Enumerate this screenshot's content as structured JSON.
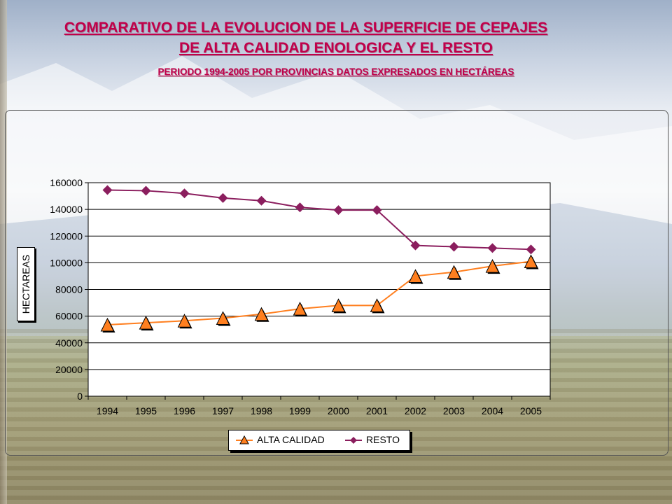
{
  "title_line1": "COMPARATIVO DE LA EVOLUCION DE LA SUPERFICIE DE CEPAJES",
  "title_line2": "DE ALTA CALIDAD ENOLOGICA Y EL RESTO",
  "subtitle": "PERIODO 1994-2005 POR PROVINCIAS DATOS EXPRESADOS EN HECTÁREAS",
  "colors": {
    "title": "#c0004a",
    "alta": "#ff7f1f",
    "resto": "#8b1e5e"
  },
  "chart_data": {
    "type": "line",
    "ylabel": "HECTAREAS",
    "xlabel": "",
    "ylim": [
      0,
      160000
    ],
    "yticks": [
      "0",
      "20000",
      "40000",
      "60000",
      "80000",
      "100000",
      "120000",
      "140000",
      "160000"
    ],
    "grid": true,
    "legend": "bottom",
    "categories": [
      "1994",
      "1995",
      "1996",
      "1997",
      "1998",
      "1999",
      "2000",
      "2001",
      "2002",
      "2003",
      "2004",
      "2005"
    ],
    "series": [
      {
        "name": "ALTA CALIDAD",
        "marker": "triangle",
        "values": [
          53500,
          55000,
          56500,
          58500,
          61500,
          65500,
          68000,
          68000,
          90000,
          93000,
          97500,
          101000
        ]
      },
      {
        "name": "RESTO",
        "marker": "diamond",
        "values": [
          154500,
          154000,
          152000,
          148500,
          146500,
          141500,
          139500,
          139500,
          113000,
          112000,
          111000,
          110000
        ]
      }
    ]
  }
}
